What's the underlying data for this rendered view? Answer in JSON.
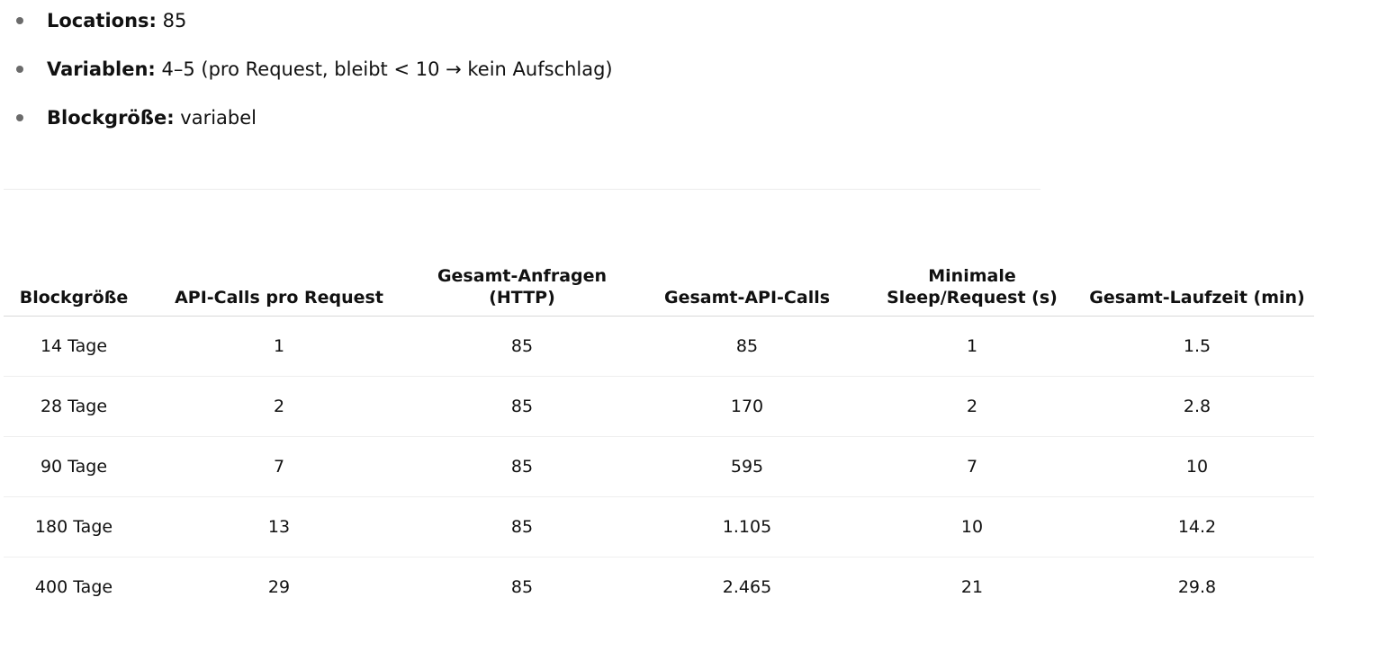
{
  "bullets": [
    {
      "key": "Locations:",
      "value": "85"
    },
    {
      "key": "Variablen:",
      "value": "4–5 (pro Request, bleibt < 10 → kein Aufschlag)"
    },
    {
      "key": "Blockgröße:",
      "value": "variabel"
    }
  ],
  "table": {
    "headers": [
      "Blockgröße",
      "API-Calls pro Request",
      "Gesamt-Anfragen (HTTP)",
      "Gesamt-API-Calls",
      "Minimale Sleep/Request (s)",
      "Gesamt-Laufzeit (min)"
    ],
    "rows": [
      [
        "14 Tage",
        "1",
        "85",
        "85",
        "1",
        "1.5"
      ],
      [
        "28 Tage",
        "2",
        "85",
        "170",
        "2",
        "2.8"
      ],
      [
        "90 Tage",
        "7",
        "85",
        "595",
        "7",
        "10"
      ],
      [
        "180 Tage",
        "13",
        "85",
        "1.105",
        "10",
        "14.2"
      ],
      [
        "400 Tage",
        "29",
        "85",
        "2.465",
        "21",
        "29.8"
      ]
    ]
  }
}
